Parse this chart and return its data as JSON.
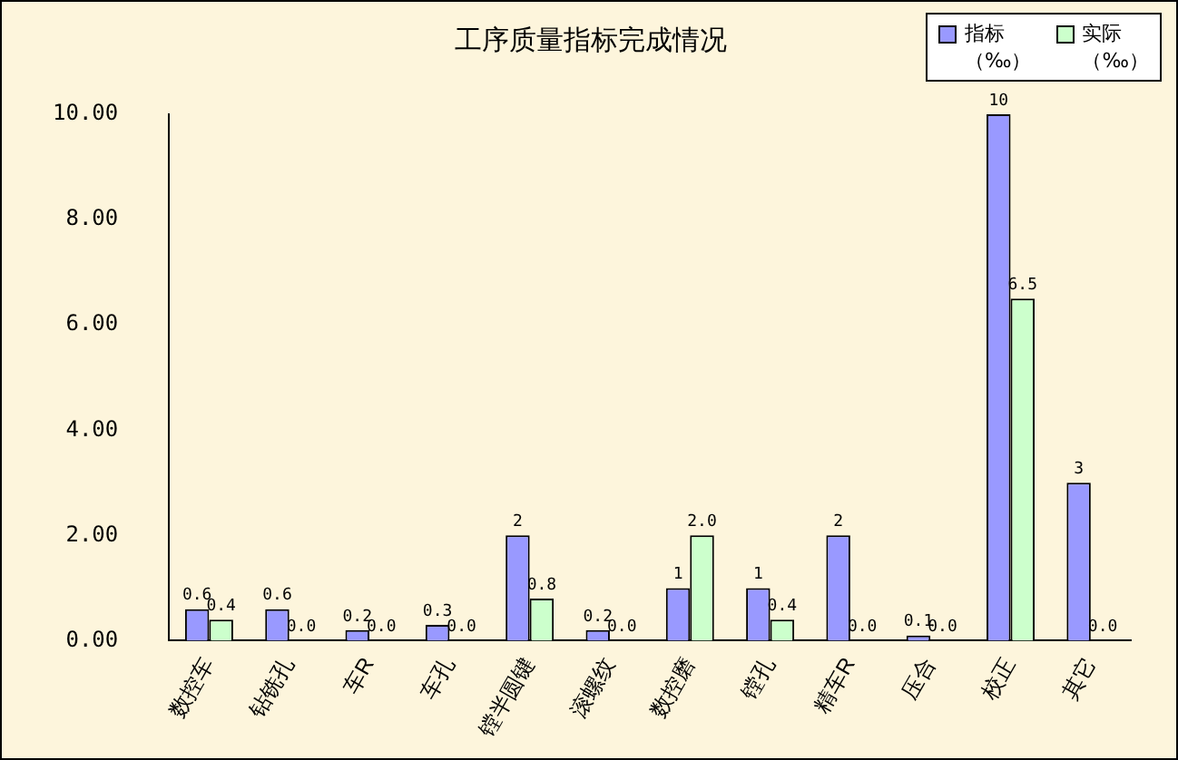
{
  "chart_data": {
    "type": "bar",
    "title": "工序质量指标完成情况",
    "categories": [
      "数控车",
      "钻铣孔",
      "车R",
      "车孔",
      "镗半圆键",
      "滚螺纹",
      "数控磨",
      "镗孔",
      "精车R",
      "压合",
      "校正",
      "其它"
    ],
    "series": [
      {
        "name": "指标（‰）",
        "color": "#9999ff",
        "values": [
          0.6,
          0.6,
          0.2,
          0.3,
          2,
          0.2,
          1,
          1,
          2,
          0.1,
          10,
          3
        ],
        "value_labels": [
          "0.6",
          "0.6",
          "0.2",
          "0.3",
          "2",
          "0.2",
          "1",
          "1",
          "2",
          "0.1",
          "10",
          "3"
        ]
      },
      {
        "name": "实际（‰）",
        "color": "#ccffcc",
        "values": [
          0.4,
          0,
          0,
          0,
          0.8,
          0,
          2,
          0.4,
          0,
          0,
          6.5,
          0
        ],
        "value_labels": [
          "0.4",
          "0.0",
          "0.0",
          "0.0",
          "0.8",
          "0.0",
          "2.0",
          "0.4",
          "0.0",
          "0.0",
          "6.5",
          "0.0"
        ]
      }
    ],
    "ylim": [
      0,
      10
    ],
    "yticks": [
      {
        "value": 0,
        "label": "0.00"
      },
      {
        "value": 2,
        "label": "2.00"
      },
      {
        "value": 4,
        "label": "4.00"
      },
      {
        "value": 6,
        "label": "6.00"
      },
      {
        "value": 8,
        "label": "8.00"
      },
      {
        "value": 10,
        "label": "10.00"
      }
    ],
    "grid": false,
    "legend": "top right"
  }
}
